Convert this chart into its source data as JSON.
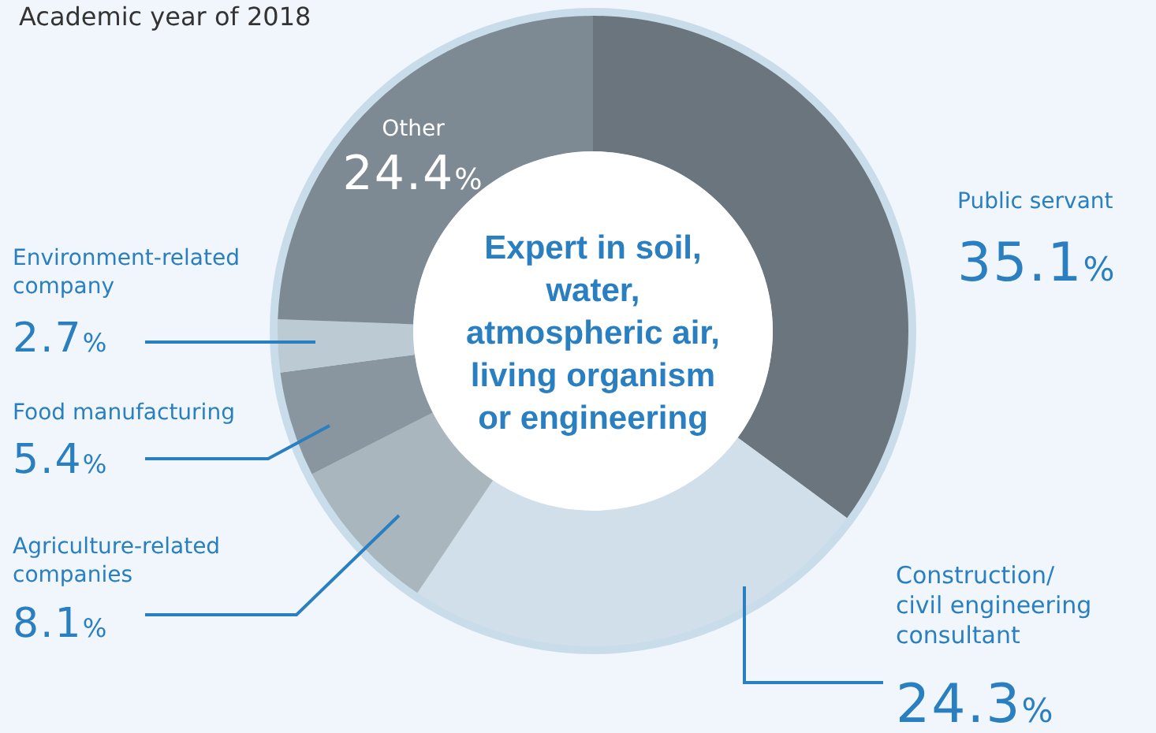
{
  "chart_data": {
    "type": "donut",
    "title": "Academic year of 2018",
    "subtitle": "Expert in soil, water, atmospheric air, living organism or engineering",
    "categories": [
      "Public servant",
      "Construction/civil engineering consultant",
      "Agriculture-related companies",
      "Food manufacturing",
      "Environment-related company",
      "Other"
    ],
    "values": [
      35.1,
      24.3,
      8.1,
      5.4,
      2.7,
      24.4
    ],
    "colors": [
      "#6b757e",
      "#d0dfe9",
      "#a9b6bd",
      "#8a969f",
      "#bccbd3",
      "#7d8a93"
    ],
    "value_labels": [
      "35.1%",
      "24.3%",
      "8.1%",
      "5.4%",
      "2.7%",
      "24.4%"
    ]
  }
}
